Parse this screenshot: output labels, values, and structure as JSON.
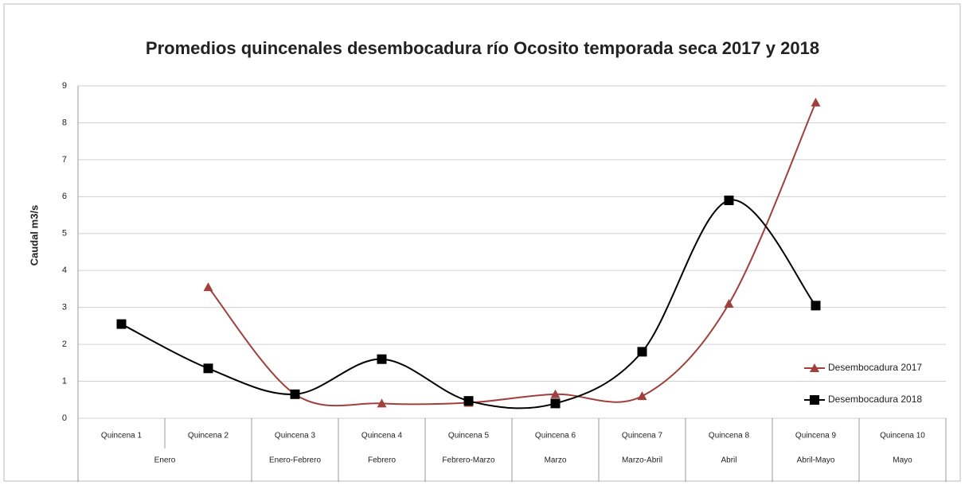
{
  "chart_data": {
    "type": "line",
    "title": "Promedios quincenales desembocadura río Ocosito temporada seca 2017 y 2018",
    "y_label": "Caudal m3/s",
    "categories": [
      "Quincena 1",
      "Quincena 2",
      "Quincena 3",
      "Quincena 4",
      "Quincena 5",
      "Quincena 6",
      "Quincena 7",
      "Quincena 8",
      "Quincena 9",
      "Quincena 10"
    ],
    "groups": [
      {
        "label": "Enero",
        "count": 2
      },
      {
        "label": "Enero-Febrero",
        "count": 1
      },
      {
        "label": "Febrero",
        "count": 1
      },
      {
        "label": "Febrero-Marzo",
        "count": 1
      },
      {
        "label": "Marzo",
        "count": 1
      },
      {
        "label": "Marzo-Abril",
        "count": 1
      },
      {
        "label": "Abril",
        "count": 1
      },
      {
        "label": "Abril-Mayo",
        "count": 1
      },
      {
        "label": "Mayo",
        "count": 1
      }
    ],
    "series": [
      {
        "name": "Desembocadura 2017",
        "color": "#a0403c",
        "marker": "triangle",
        "values": [
          null,
          3.55,
          0.65,
          0.4,
          0.42,
          0.65,
          0.6,
          3.1,
          8.55,
          null
        ]
      },
      {
        "name": "Desembocadura 2018",
        "color": "#000000",
        "marker": "square",
        "values": [
          2.55,
          1.35,
          0.65,
          1.6,
          0.47,
          0.4,
          1.8,
          5.9,
          3.05,
          null
        ]
      }
    ],
    "ylim": [
      0,
      9
    ],
    "yticks": [
      0,
      1,
      2,
      3,
      4,
      5,
      6,
      7,
      8,
      9
    ],
    "grid": true,
    "smooth": true,
    "legend": "lower right"
  }
}
